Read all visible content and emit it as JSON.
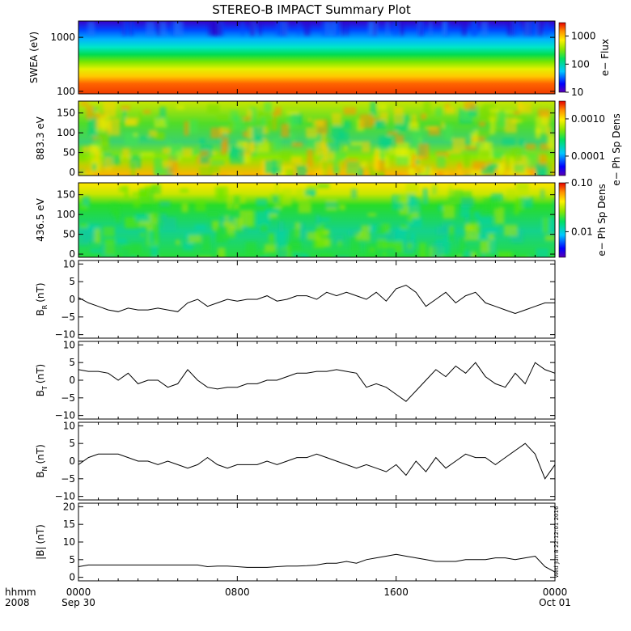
{
  "title": "STEREO-B IMPACT Summary Plot",
  "time_axis": {
    "row1_prefix": "hhmm",
    "row2_prefix": "2008",
    "ticks": [
      {
        "time": "0000",
        "date": "Sep 30",
        "hours": 0
      },
      {
        "time": "0800",
        "date": "",
        "hours": 8
      },
      {
        "time": "1600",
        "date": "",
        "hours": 16
      },
      {
        "time": "0000",
        "date": "Oct 01",
        "hours": 24
      }
    ],
    "range_hours": [
      0,
      24
    ]
  },
  "timestamp": "Wed Jun 8 22:12:01 2016",
  "colors": {
    "axis": "#000000",
    "trace": "#000000",
    "background": "#ffffff"
  },
  "chart_data": [
    {
      "type": "heatmap",
      "ylabel": "SWEA (eV)",
      "yscale": "log",
      "ylim": [
        90,
        2000
      ],
      "yticks": [
        "100",
        "1000"
      ],
      "colorbar": {
        "label": "e− Flux",
        "scale": "log",
        "range": [
          10,
          3000
        ],
        "ticks": [
          "10",
          "100",
          "1000"
        ]
      }
    },
    {
      "type": "heatmap",
      "ylabel": "883.3 eV",
      "ylim": [
        -8,
        180
      ],
      "yticks": [
        "0",
        "50",
        "100",
        "150"
      ],
      "colorbar": {
        "label": "e− Ph Sp Dens",
        "scale": "log",
        "range": [
          3e-05,
          0.003
        ],
        "ticks": [
          "0.0001",
          "0.0010"
        ]
      }
    },
    {
      "type": "heatmap",
      "ylabel": "436.5 eV",
      "ylim": [
        -8,
        180
      ],
      "yticks": [
        "0",
        "50",
        "100",
        "150"
      ],
      "colorbar": {
        "label": "e− Ph Sp Dens",
        "scale": "log",
        "range": [
          0.003,
          0.1
        ],
        "ticks": [
          "0.01",
          "0.10"
        ]
      }
    },
    {
      "type": "line",
      "ylabel": "B",
      "ylabel_sub": "R",
      "ylabel_unit": "(nT)",
      "ylim": [
        -11,
        11
      ],
      "yticks": [
        "10",
        "5",
        "0",
        "−5",
        "−10"
      ],
      "x": [
        0,
        0.5,
        1,
        1.5,
        2,
        2.5,
        3,
        3.5,
        4,
        4.5,
        5,
        5.5,
        6,
        6.5,
        7,
        7.5,
        8,
        8.5,
        9,
        9.5,
        10,
        10.5,
        11,
        11.5,
        12,
        12.5,
        13,
        13.5,
        14,
        14.5,
        15,
        15.5,
        16,
        16.5,
        17,
        17.5,
        18,
        18.5,
        19,
        19.5,
        20,
        20.5,
        21,
        21.5,
        22,
        22.5,
        23,
        23.5,
        24
      ],
      "values": [
        0.5,
        -1,
        -2,
        -3,
        -3.5,
        -2.5,
        -3,
        -3,
        -2.5,
        -3,
        -3.5,
        -1,
        0,
        -2,
        -1,
        0,
        -0.5,
        0,
        0,
        1,
        -0.5,
        0,
        1,
        1,
        0,
        2,
        1,
        2,
        1,
        0,
        2,
        -0.5,
        3,
        4,
        2,
        -2,
        0,
        2,
        -1,
        1,
        2,
        -1,
        -2,
        -3,
        -4,
        -3,
        -2,
        -1,
        -1
      ]
    },
    {
      "type": "line",
      "ylabel": "B",
      "ylabel_sub": "T",
      "ylabel_unit": "(nT)",
      "ylim": [
        -11,
        11
      ],
      "yticks": [
        "10",
        "5",
        "0",
        "−5",
        "−10"
      ],
      "x": [
        0,
        0.5,
        1,
        1.5,
        2,
        2.5,
        3,
        3.5,
        4,
        4.5,
        5,
        5.5,
        6,
        6.5,
        7,
        7.5,
        8,
        8.5,
        9,
        9.5,
        10,
        10.5,
        11,
        11.5,
        12,
        12.5,
        13,
        13.5,
        14,
        14.5,
        15,
        15.5,
        16,
        16.5,
        17,
        17.5,
        18,
        18.5,
        19,
        19.5,
        20,
        20.5,
        21,
        21.5,
        22,
        22.5,
        23,
        23.5,
        24
      ],
      "values": [
        3,
        2.5,
        2.5,
        2,
        0,
        2,
        -1,
        0,
        0,
        -2,
        -1,
        3,
        0,
        -2,
        -2.5,
        -2,
        -2,
        -1,
        -1,
        0,
        0,
        1,
        2,
        2,
        2.5,
        2.5,
        3,
        2.5,
        2,
        -2,
        -1,
        -2,
        -4,
        -6,
        -3,
        0,
        3,
        1,
        4,
        2,
        5,
        1,
        -1,
        -2,
        2,
        -1,
        5,
        3,
        2
      ]
    },
    {
      "type": "line",
      "ylabel": "B",
      "ylabel_sub": "N",
      "ylabel_unit": "(nT)",
      "ylim": [
        -11,
        11
      ],
      "yticks": [
        "10",
        "5",
        "0",
        "−5",
        "−10"
      ],
      "x": [
        0,
        0.5,
        1,
        1.5,
        2,
        2.5,
        3,
        3.5,
        4,
        4.5,
        5,
        5.5,
        6,
        6.5,
        7,
        7.5,
        8,
        8.5,
        9,
        9.5,
        10,
        10.5,
        11,
        11.5,
        12,
        12.5,
        13,
        13.5,
        14,
        14.5,
        15,
        15.5,
        16,
        16.5,
        17,
        17.5,
        18,
        18.5,
        19,
        19.5,
        20,
        20.5,
        21,
        21.5,
        22,
        22.5,
        23,
        23.5,
        24
      ],
      "values": [
        -1,
        1,
        2,
        2,
        2,
        1,
        0,
        0,
        -1,
        0,
        -1,
        -2,
        -1,
        1,
        -1,
        -2,
        -1,
        -1,
        -1,
        0,
        -1,
        0,
        1,
        1,
        2,
        1,
        0,
        -1,
        -2,
        -1,
        -2,
        -3,
        -1,
        -4,
        0,
        -3,
        1,
        -2,
        0,
        2,
        1,
        1,
        -1,
        1,
        3,
        5,
        2,
        -5,
        -1
      ]
    },
    {
      "type": "line",
      "ylabel": "|B|",
      "ylabel_unit": "(nT)",
      "ylim": [
        -1,
        21
      ],
      "yticks": [
        "20",
        "15",
        "10",
        "5",
        "0"
      ],
      "x": [
        0,
        0.5,
        1,
        1.5,
        2,
        2.5,
        3,
        3.5,
        4,
        4.5,
        5,
        5.5,
        6,
        6.5,
        7,
        7.5,
        8,
        8.5,
        9,
        9.5,
        10,
        10.5,
        11,
        11.5,
        12,
        12.5,
        13,
        13.5,
        14,
        14.5,
        15,
        15.5,
        16,
        16.5,
        17,
        17.5,
        18,
        18.5,
        19,
        19.5,
        20,
        20.5,
        21,
        21.5,
        22,
        22.5,
        23,
        23.5,
        24
      ],
      "values": [
        3,
        3.5,
        3.5,
        3.5,
        3.5,
        3.5,
        3.5,
        3.5,
        3.5,
        3.5,
        3.5,
        3.5,
        3.5,
        3,
        3.2,
        3.2,
        3,
        2.8,
        2.8,
        2.8,
        3,
        3.2,
        3.2,
        3.3,
        3.5,
        4,
        4,
        4.5,
        4,
        5,
        5.5,
        6,
        6.5,
        6,
        5.5,
        5,
        4.5,
        4.5,
        4.5,
        5,
        5,
        5,
        5.5,
        5.5,
        5,
        5.5,
        6,
        3,
        1.5
      ]
    }
  ]
}
